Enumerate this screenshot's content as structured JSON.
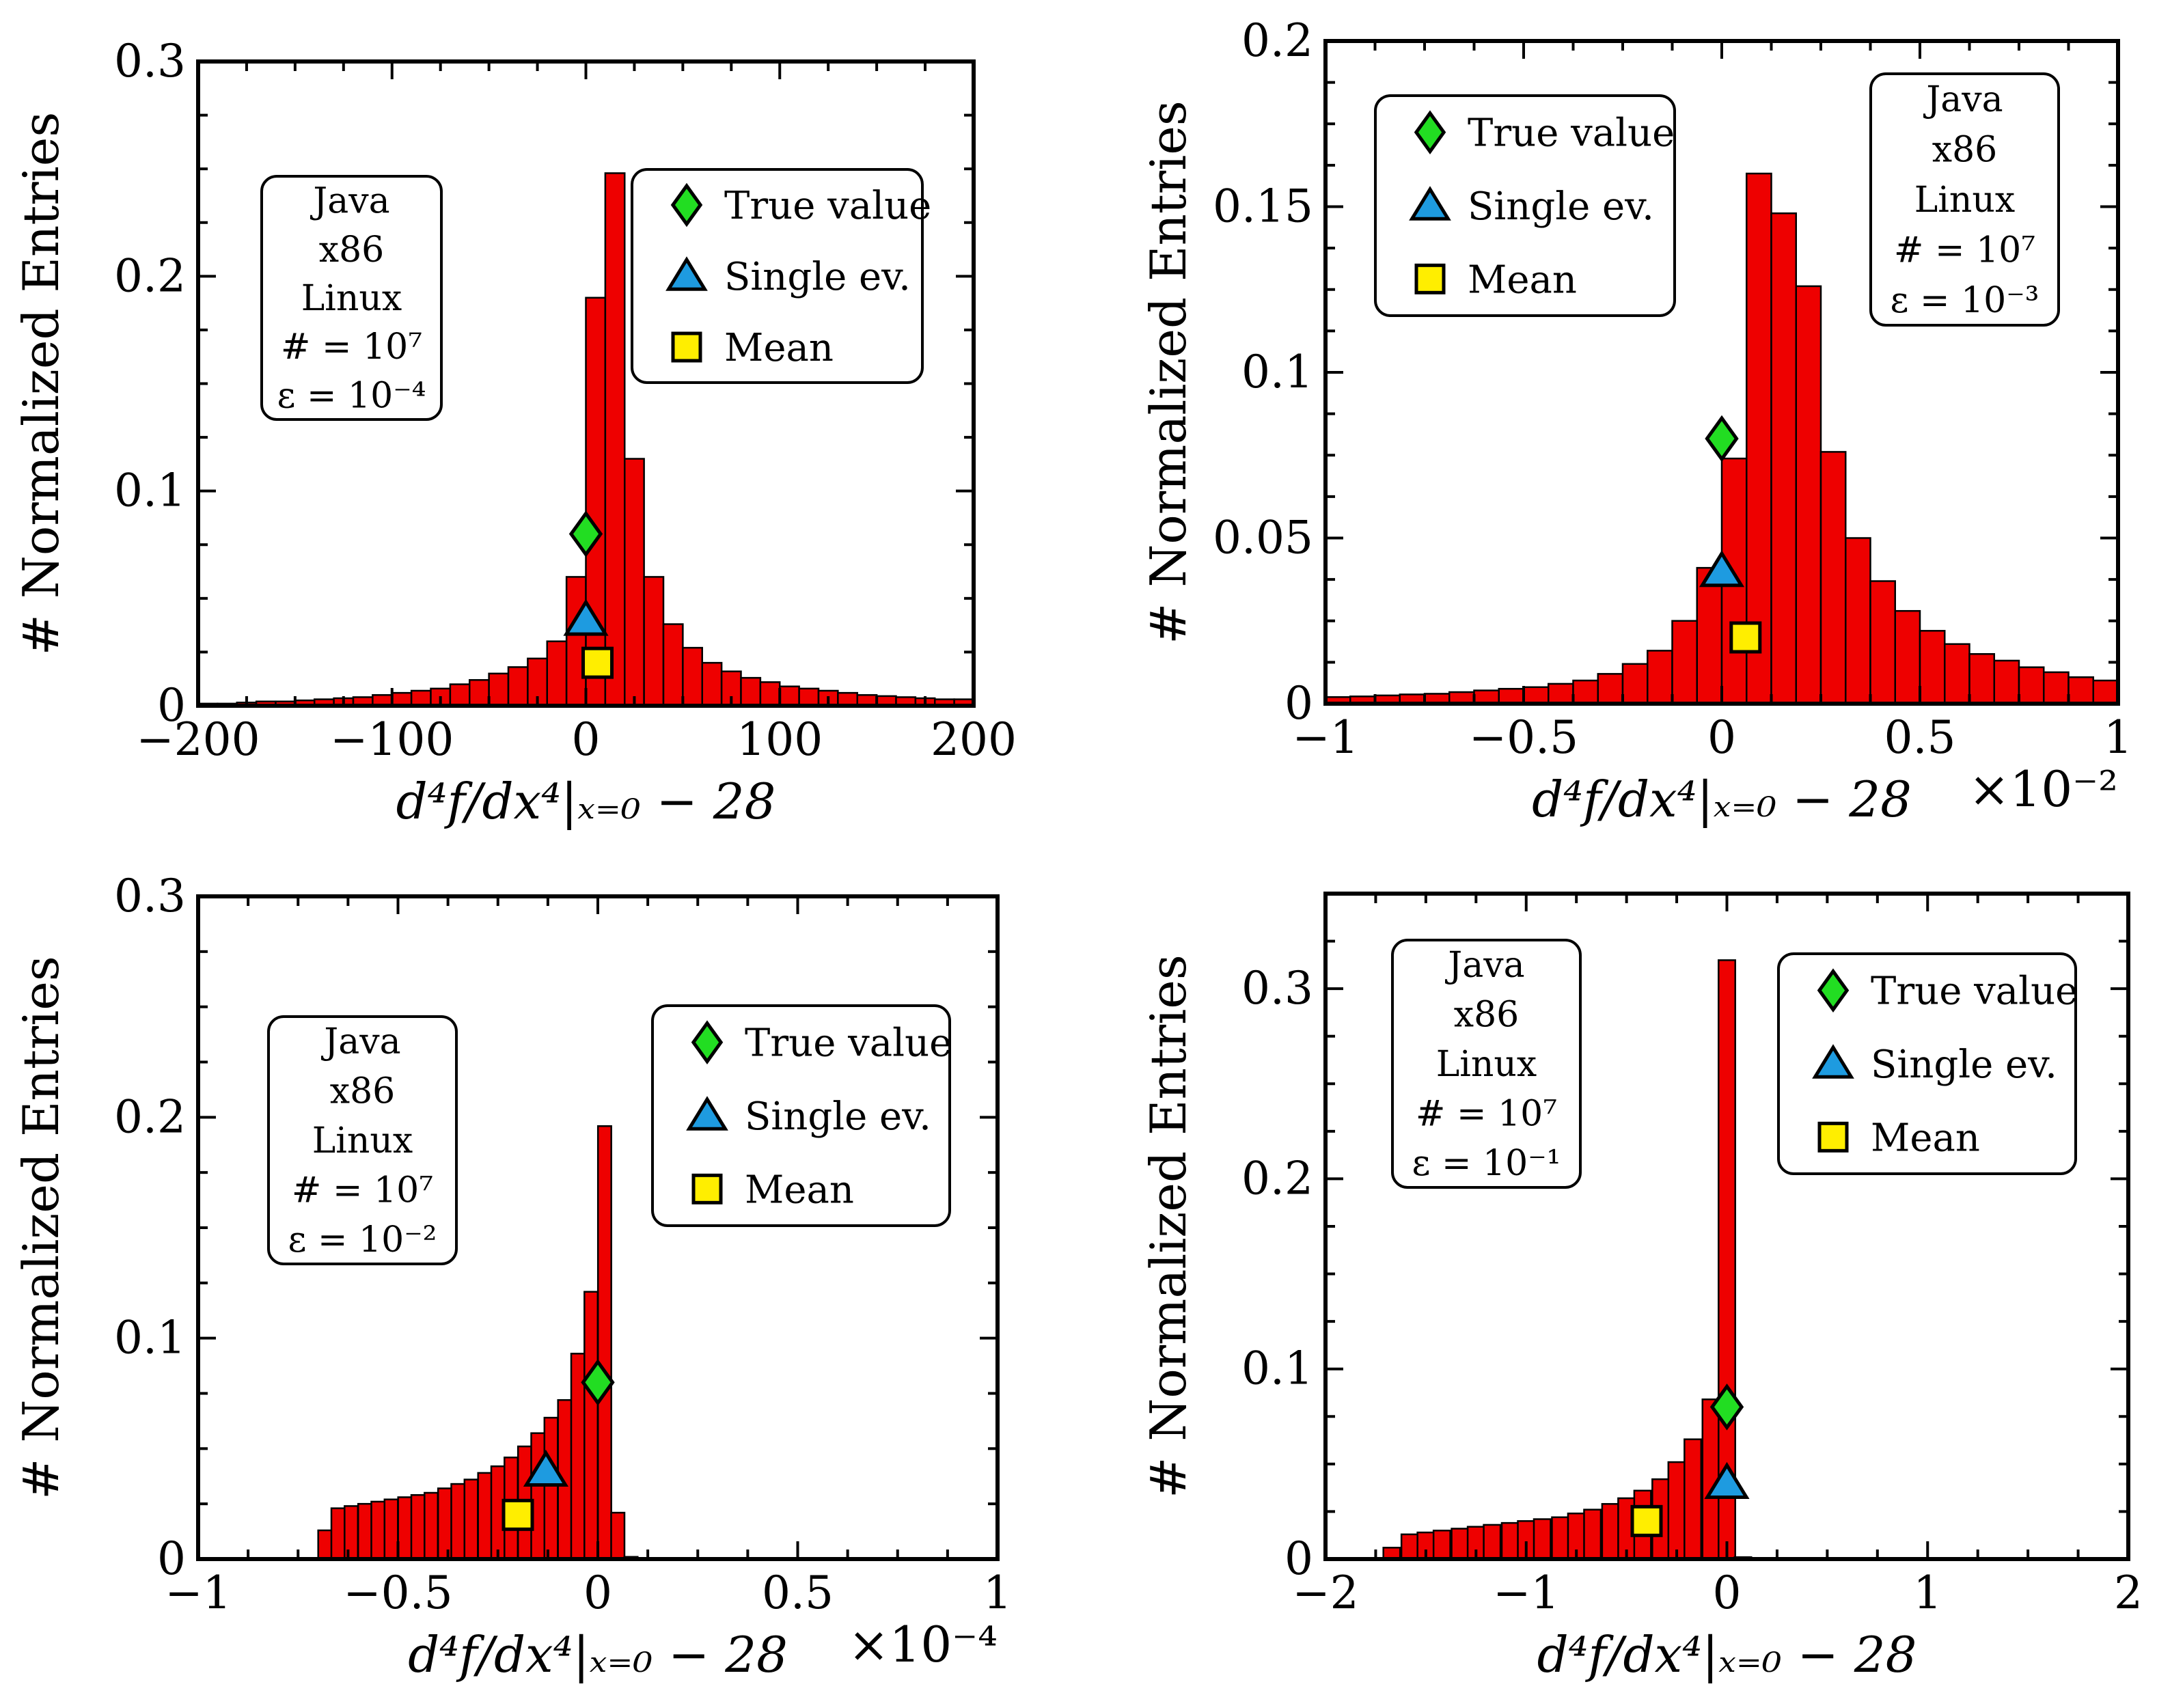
{
  "figure": {
    "colors": {
      "bar_fill": "#ee0000",
      "bar_edge": "#000000",
      "true_value": "#22dd22",
      "single_ev": "#1e9be0",
      "mean": "#ffee00"
    }
  },
  "chart_data": [
    {
      "type": "bar",
      "panel": "top-left",
      "xlabel": "d⁴f/dx⁴|ₓ₌₀ − 28",
      "ylabel": "# Normalized Entries",
      "x_multiplier": "",
      "xlim": [
        -200,
        200
      ],
      "ylim": [
        0,
        0.3
      ],
      "xticks": [
        -200,
        -100,
        0,
        100,
        200
      ],
      "xtick_labels": [
        "−200",
        "−100",
        "0",
        "100",
        "200"
      ],
      "yticks": [
        0,
        0.1,
        0.2,
        0.3
      ],
      "ytick_labels": [
        "0",
        "0.1",
        "0.2",
        "0.3"
      ],
      "bin_width": 10,
      "bins": [
        {
          "x": -195,
          "y": 0.001
        },
        {
          "x": -185,
          "y": 0.001
        },
        {
          "x": -175,
          "y": 0.0015
        },
        {
          "x": -165,
          "y": 0.002
        },
        {
          "x": -155,
          "y": 0.002
        },
        {
          "x": -145,
          "y": 0.0025
        },
        {
          "x": -135,
          "y": 0.003
        },
        {
          "x": -125,
          "y": 0.0035
        },
        {
          "x": -115,
          "y": 0.004
        },
        {
          "x": -105,
          "y": 0.005
        },
        {
          "x": -95,
          "y": 0.006
        },
        {
          "x": -85,
          "y": 0.007
        },
        {
          "x": -75,
          "y": 0.008
        },
        {
          "x": -65,
          "y": 0.01
        },
        {
          "x": -55,
          "y": 0.012
        },
        {
          "x": -45,
          "y": 0.015
        },
        {
          "x": -35,
          "y": 0.018
        },
        {
          "x": -25,
          "y": 0.022
        },
        {
          "x": -15,
          "y": 0.03
        },
        {
          "x": -5,
          "y": 0.06
        },
        {
          "x": 5,
          "y": 0.19
        },
        {
          "x": 15,
          "y": 0.248
        },
        {
          "x": 25,
          "y": 0.115
        },
        {
          "x": 35,
          "y": 0.06
        },
        {
          "x": 45,
          "y": 0.038
        },
        {
          "x": 55,
          "y": 0.027
        },
        {
          "x": 65,
          "y": 0.02
        },
        {
          "x": 75,
          "y": 0.016
        },
        {
          "x": 85,
          "y": 0.013
        },
        {
          "x": 95,
          "y": 0.011
        },
        {
          "x": 105,
          "y": 0.009
        },
        {
          "x": 115,
          "y": 0.008
        },
        {
          "x": 125,
          "y": 0.007
        },
        {
          "x": 135,
          "y": 0.006
        },
        {
          "x": 145,
          "y": 0.005
        },
        {
          "x": 155,
          "y": 0.0045
        },
        {
          "x": 165,
          "y": 0.004
        },
        {
          "x": 175,
          "y": 0.0035
        },
        {
          "x": 185,
          "y": 0.003
        },
        {
          "x": 195,
          "y": 0.003
        }
      ],
      "markers": {
        "true_value": {
          "x": 0,
          "y": 0.08
        },
        "single_ev": {
          "x": 0,
          "y": 0.04
        },
        "mean": {
          "x": 6,
          "y": 0.02
        }
      },
      "legend": {
        "position": "upper-right",
        "entries": [
          "True value",
          "Single ev.",
          "Mean"
        ]
      },
      "info_box": {
        "position": "upper-left",
        "lines": [
          "Java",
          "x86",
          "Linux",
          "# = 10⁷",
          "ε = 10⁻⁴"
        ]
      }
    },
    {
      "type": "bar",
      "panel": "top-right",
      "xlabel": "d⁴f/dx⁴|ₓ₌₀ − 28",
      "ylabel": "# Normalized Entries",
      "x_multiplier": "×10⁻²",
      "xlim": [
        -1,
        1
      ],
      "ylim": [
        0,
        0.2
      ],
      "xticks": [
        -1,
        -0.5,
        0,
        0.5,
        1
      ],
      "xtick_labels": [
        "−1",
        "−0.5",
        "0",
        "0.5",
        "1"
      ],
      "yticks": [
        0,
        0.05,
        0.1,
        0.15,
        0.2
      ],
      "ytick_labels": [
        "0",
        "0.05",
        "0.1",
        "0.15",
        "0.2"
      ],
      "bin_width": 0.0625,
      "bins": [
        {
          "x": -0.96875,
          "y": 0.002
        },
        {
          "x": -0.90625,
          "y": 0.0022
        },
        {
          "x": -0.84375,
          "y": 0.0025
        },
        {
          "x": -0.78125,
          "y": 0.0028
        },
        {
          "x": -0.71875,
          "y": 0.003
        },
        {
          "x": -0.65625,
          "y": 0.0035
        },
        {
          "x": -0.59375,
          "y": 0.004
        },
        {
          "x": -0.53125,
          "y": 0.0045
        },
        {
          "x": -0.46875,
          "y": 0.005
        },
        {
          "x": -0.40625,
          "y": 0.006
        },
        {
          "x": -0.34375,
          "y": 0.007
        },
        {
          "x": -0.28125,
          "y": 0.009
        },
        {
          "x": -0.21875,
          "y": 0.012
        },
        {
          "x": -0.15625,
          "y": 0.016
        },
        {
          "x": -0.09375,
          "y": 0.025
        },
        {
          "x": -0.03125,
          "y": 0.041
        },
        {
          "x": 0.03125,
          "y": 0.074
        },
        {
          "x": 0.09375,
          "y": 0.16
        },
        {
          "x": 0.15625,
          "y": 0.148
        },
        {
          "x": 0.21875,
          "y": 0.126
        },
        {
          "x": 0.28125,
          "y": 0.076
        },
        {
          "x": 0.34375,
          "y": 0.05
        },
        {
          "x": 0.40625,
          "y": 0.037
        },
        {
          "x": 0.46875,
          "y": 0.028
        },
        {
          "x": 0.53125,
          "y": 0.022
        },
        {
          "x": 0.59375,
          "y": 0.018
        },
        {
          "x": 0.65625,
          "y": 0.015
        },
        {
          "x": 0.71875,
          "y": 0.013
        },
        {
          "x": 0.78125,
          "y": 0.011
        },
        {
          "x": 0.84375,
          "y": 0.0095
        },
        {
          "x": 0.90625,
          "y": 0.008
        },
        {
          "x": 0.96875,
          "y": 0.007
        }
      ],
      "markers": {
        "true_value": {
          "x": 0,
          "y": 0.08
        },
        "single_ev": {
          "x": 0,
          "y": 0.04
        },
        "mean": {
          "x": 0.06,
          "y": 0.02
        }
      },
      "legend": {
        "position": "upper-left",
        "entries": [
          "True value",
          "Single ev.",
          "Mean"
        ]
      },
      "info_box": {
        "position": "upper-right",
        "lines": [
          "Java",
          "x86",
          "Linux",
          "# = 10⁷",
          "ε = 10⁻³"
        ]
      }
    },
    {
      "type": "bar",
      "panel": "bottom-left",
      "xlabel": "d⁴f/dx⁴|ₓ₌₀ − 28",
      "ylabel": "# Normalized Entries",
      "x_multiplier": "×10⁻⁴",
      "xlim": [
        -1,
        1
      ],
      "ylim": [
        0,
        0.3
      ],
      "xticks": [
        -1,
        -0.5,
        0,
        0.5,
        1
      ],
      "xtick_labels": [
        "−1",
        "−0.5",
        "0",
        "0.5",
        "1"
      ],
      "yticks": [
        0,
        0.1,
        0.2,
        0.3
      ],
      "ytick_labels": [
        "0",
        "0.1",
        "0.2",
        "0.3"
      ],
      "bin_width": 0.0333,
      "bins": [
        {
          "x": -0.683,
          "y": 0.013
        },
        {
          "x": -0.65,
          "y": 0.023
        },
        {
          "x": -0.617,
          "y": 0.024
        },
        {
          "x": -0.583,
          "y": 0.025
        },
        {
          "x": -0.55,
          "y": 0.026
        },
        {
          "x": -0.517,
          "y": 0.027
        },
        {
          "x": -0.483,
          "y": 0.028
        },
        {
          "x": -0.45,
          "y": 0.029
        },
        {
          "x": -0.417,
          "y": 0.03
        },
        {
          "x": -0.383,
          "y": 0.032
        },
        {
          "x": -0.35,
          "y": 0.034
        },
        {
          "x": -0.317,
          "y": 0.036
        },
        {
          "x": -0.283,
          "y": 0.039
        },
        {
          "x": -0.25,
          "y": 0.042
        },
        {
          "x": -0.217,
          "y": 0.046
        },
        {
          "x": -0.183,
          "y": 0.051
        },
        {
          "x": -0.15,
          "y": 0.057
        },
        {
          "x": -0.117,
          "y": 0.064
        },
        {
          "x": -0.083,
          "y": 0.072
        },
        {
          "x": -0.05,
          "y": 0.093
        },
        {
          "x": -0.017,
          "y": 0.121
        },
        {
          "x": 0.017,
          "y": 0.196
        },
        {
          "x": 0.05,
          "y": 0.021
        },
        {
          "x": 0.083,
          "y": 0.001
        }
      ],
      "markers": {
        "true_value": {
          "x": 0,
          "y": 0.08
        },
        "single_ev": {
          "x": -0.13,
          "y": 0.04
        },
        "mean": {
          "x": -0.2,
          "y": 0.02
        }
      },
      "legend": {
        "position": "upper-right",
        "entries": [
          "True value",
          "Single ev.",
          "Mean"
        ]
      },
      "info_box": {
        "position": "upper-left",
        "lines": [
          "Java",
          "x86",
          "Linux",
          "# = 10⁷",
          "ε = 10⁻²"
        ]
      }
    },
    {
      "type": "bar",
      "panel": "bottom-right",
      "xlabel": "d⁴f/dx⁴|ₓ₌₀ − 28",
      "ylabel": "# Normalized Entries",
      "x_multiplier": "",
      "xlim": [
        -2,
        2
      ],
      "ylim": [
        0,
        0.35
      ],
      "xticks": [
        -2,
        -1,
        0,
        1,
        2
      ],
      "xtick_labels": [
        "−2",
        "−1",
        "0",
        "1",
        "2"
      ],
      "yticks": [
        0,
        0.1,
        0.2,
        0.3
      ],
      "ytick_labels": [
        "0",
        "0.1",
        "0.2",
        "0.3"
      ],
      "bin_width": 0.0833,
      "bins": [
        {
          "x": -1.67,
          "y": 0.006
        },
        {
          "x": -1.58,
          "y": 0.013
        },
        {
          "x": -1.5,
          "y": 0.014
        },
        {
          "x": -1.42,
          "y": 0.015
        },
        {
          "x": -1.33,
          "y": 0.016
        },
        {
          "x": -1.25,
          "y": 0.017
        },
        {
          "x": -1.17,
          "y": 0.018
        },
        {
          "x": -1.08,
          "y": 0.019
        },
        {
          "x": -1.0,
          "y": 0.02
        },
        {
          "x": -0.92,
          "y": 0.021
        },
        {
          "x": -0.83,
          "y": 0.022
        },
        {
          "x": -0.75,
          "y": 0.024
        },
        {
          "x": -0.67,
          "y": 0.026
        },
        {
          "x": -0.58,
          "y": 0.029
        },
        {
          "x": -0.5,
          "y": 0.032
        },
        {
          "x": -0.42,
          "y": 0.036
        },
        {
          "x": -0.33,
          "y": 0.042
        },
        {
          "x": -0.25,
          "y": 0.051
        },
        {
          "x": -0.17,
          "y": 0.063
        },
        {
          "x": -0.08,
          "y": 0.084
        },
        {
          "x": 0.0,
          "y": 0.315
        },
        {
          "x": 0.08,
          "y": 0.001
        }
      ],
      "markers": {
        "true_value": {
          "x": 0,
          "y": 0.08
        },
        "single_ev": {
          "x": 0,
          "y": 0.04
        },
        "mean": {
          "x": -0.4,
          "y": 0.02
        }
      },
      "legend": {
        "position": "upper-right",
        "entries": [
          "True value",
          "Single ev.",
          "Mean"
        ]
      },
      "info_box": {
        "position": "upper-left",
        "lines": [
          "Java",
          "x86",
          "Linux",
          "# = 10⁷",
          "ε = 10⁻¹"
        ]
      }
    }
  ]
}
